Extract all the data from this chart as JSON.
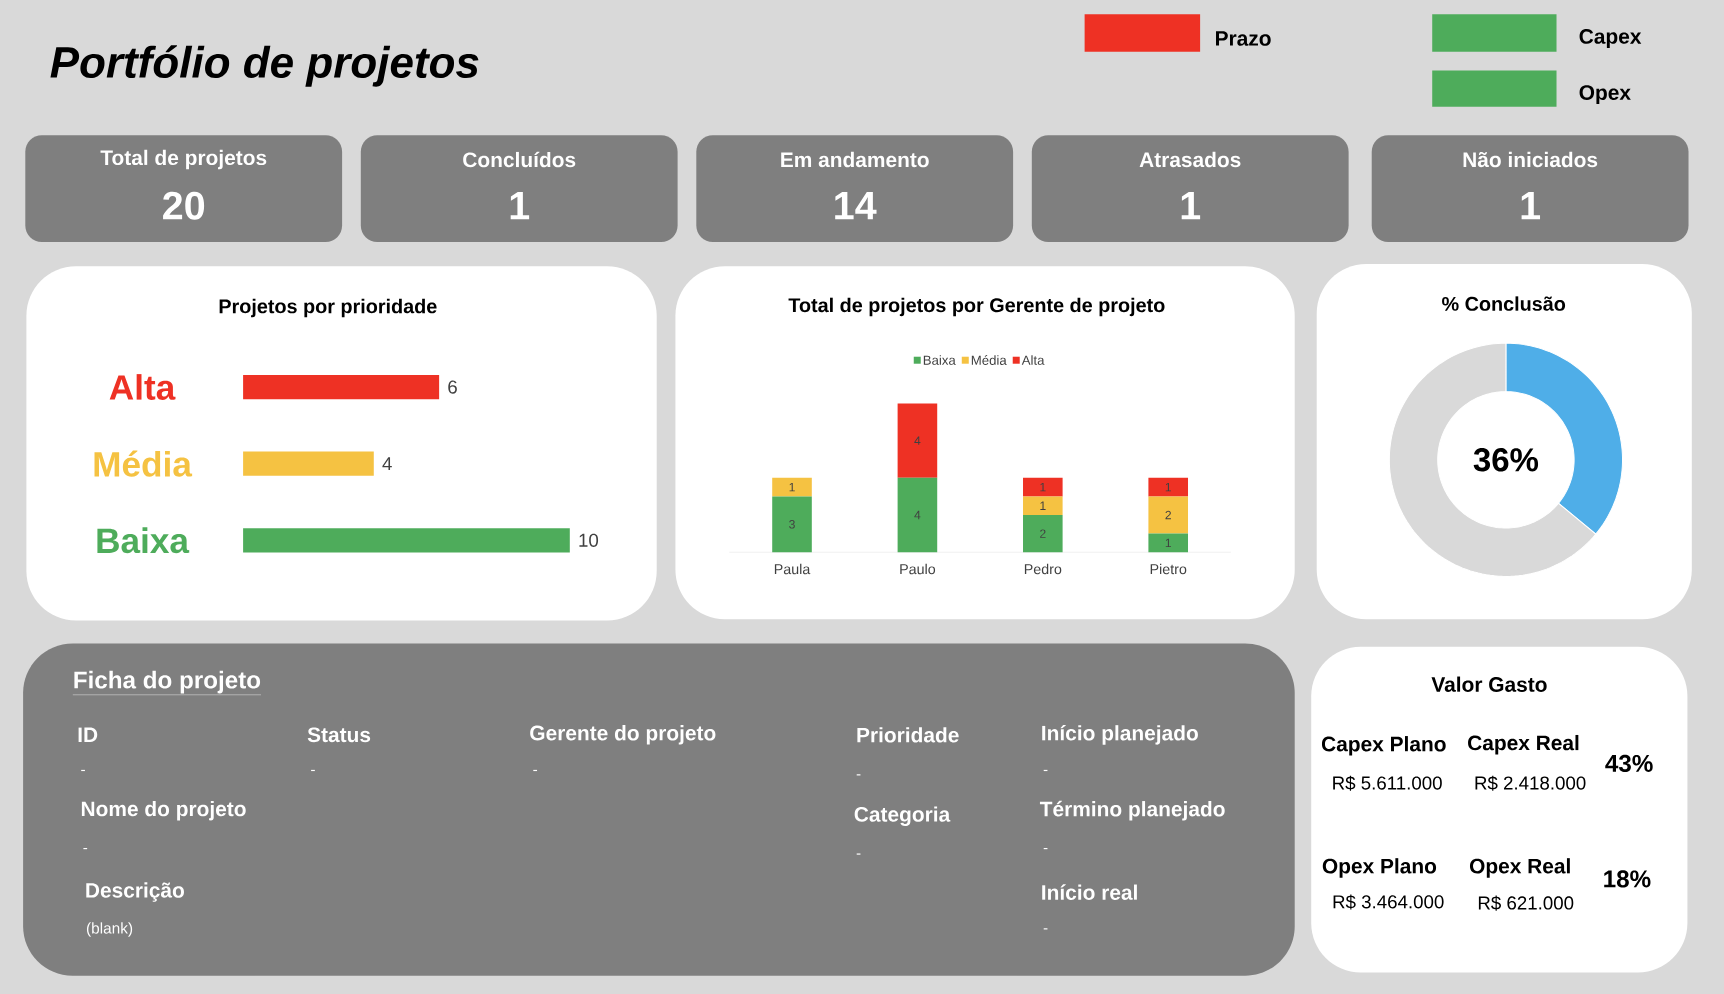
{
  "chart_data": [
    {
      "type": "other",
      "title": "Portfólio de projetos",
      "categories": [
        "Prazo",
        "Capex",
        "Opex"
      ],
      "colors": [
        "#ee3124",
        "#4eac5b",
        "#4eac5b"
      ]
    },
    {
      "type": "other",
      "categories": [
        "Total de projetos",
        "Concluídos",
        "Em andamento",
        "Atrasados",
        "Não iniciados"
      ],
      "values": [
        20,
        1,
        14,
        1,
        1
      ],
      "data_labels": true
    },
    {
      "type": "bar",
      "orientation": "horizontal",
      "title": "Projetos por prioridade",
      "categories": [
        "Alta",
        "Média",
        "Baixa"
      ],
      "values": [
        6,
        4,
        10
      ],
      "colors": [
        "#ee3124",
        "#f5c242",
        "#4eac5b"
      ],
      "data_labels": true
    },
    {
      "type": "bar",
      "stacked": true,
      "title": "Total de projetos por Gerente de projeto",
      "categories": [
        "Paula",
        "Paulo",
        "Pedro",
        "Pietro"
      ],
      "series": [
        {
          "name": "Baixa",
          "color": "#4eac5b",
          "values": [
            3,
            4,
            2,
            1
          ]
        },
        {
          "name": "Média",
          "color": "#f5c242",
          "values": [
            1,
            null,
            1,
            2
          ]
        },
        {
          "name": "Alta",
          "color": "#ee3124",
          "values": [
            null,
            4,
            1,
            1
          ]
        }
      ],
      "data_labels": true,
      "legend": "top"
    },
    {
      "type": "donut",
      "title": "% Conclusão",
      "categories": [
        null,
        null
      ],
      "values": [
        36,
        64
      ],
      "colors": [
        "#4faee8",
        "#d9d9d9"
      ],
      "annotations": [
        "36%"
      ]
    },
    {
      "type": "other",
      "title": "Ficha do projeto",
      "annotations": [
        "ID",
        "-",
        "Status",
        "-",
        "Gerente do projeto",
        "-",
        "Prioridade",
        "-",
        "Início planejado",
        "-",
        "Nome do projeto",
        "-",
        "Categoria",
        "-",
        "Término planejado",
        "-",
        "Descrição",
        "(blank)",
        "Início real",
        "-"
      ]
    },
    {
      "type": "other",
      "title": "Valor Gasto",
      "annotations": [
        "Capex Plano",
        "R$ 5.611.000",
        "Capex Real",
        "R$ 2.418.000",
        "43%",
        "Opex Plano",
        "R$ 3.464.000",
        "Opex Real",
        "R$ 621.000",
        "18%"
      ]
    }
  ]
}
